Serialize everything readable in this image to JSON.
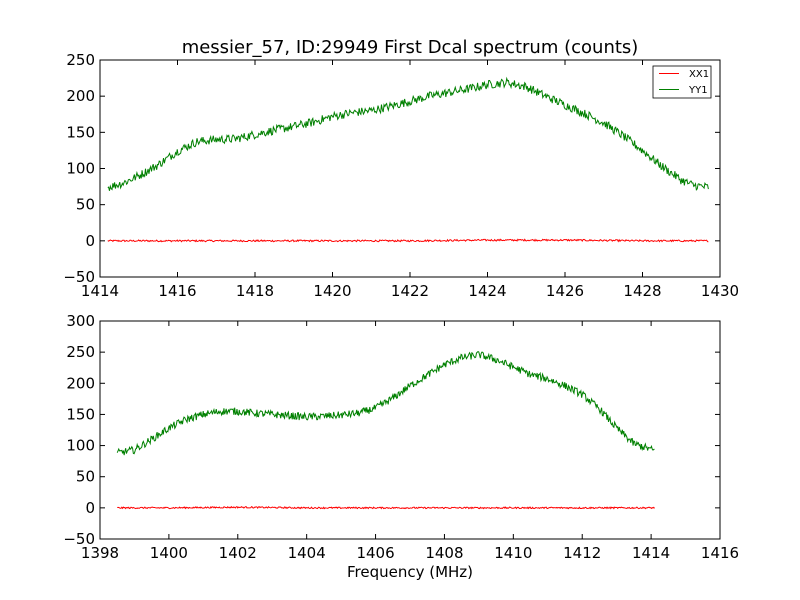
{
  "chart_data": [
    {
      "type": "line",
      "title": "messier_57, ID:29949 First Dcal spectrum (counts)",
      "xlabel": "",
      "ylabel": "",
      "xlim": [
        1414,
        1430
      ],
      "ylim": [
        -50,
        250
      ],
      "xticks": [
        "1414",
        "1416",
        "1418",
        "1420",
        "1422",
        "1424",
        "1426",
        "1428",
        "1430"
      ],
      "yticks": [
        "−50",
        "0",
        "50",
        "100",
        "150",
        "200",
        "250"
      ],
      "legend": {
        "placement": "top-right",
        "entries": [
          "XX1",
          "YY1"
        ]
      },
      "grid": false,
      "series": [
        {
          "name": "XX1",
          "color": "#ff0000",
          "x": [
            1414.2,
            1416,
            1418,
            1420,
            1422,
            1424,
            1426,
            1428,
            1429.7
          ],
          "y": [
            0,
            0,
            0,
            0,
            0,
            1,
            1,
            0,
            0
          ]
        },
        {
          "name": "YY1",
          "color": "#008000",
          "x": [
            1414.2,
            1414.6,
            1415,
            1415.5,
            1416,
            1416.5,
            1417,
            1417.5,
            1418,
            1418.5,
            1419,
            1419.5,
            1420,
            1420.5,
            1421,
            1421.5,
            1422,
            1422.5,
            1423,
            1423.5,
            1424,
            1424.5,
            1425,
            1425.5,
            1426,
            1426.5,
            1427,
            1427.5,
            1428,
            1428.5,
            1429,
            1429.3,
            1429.7
          ],
          "y": [
            74,
            80,
            90,
            105,
            124,
            137,
            140,
            141,
            147,
            153,
            158,
            164,
            172,
            177,
            180,
            186,
            193,
            200,
            205,
            210,
            216,
            219,
            213,
            200,
            188,
            176,
            163,
            145,
            125,
            103,
            84,
            77,
            74
          ]
        }
      ]
    },
    {
      "type": "line",
      "title": "",
      "xlabel": "Frequency (MHz)",
      "ylabel": "",
      "xlim": [
        1398,
        1416
      ],
      "ylim": [
        -50,
        300
      ],
      "xticks": [
        "1398",
        "1400",
        "1402",
        "1404",
        "1406",
        "1408",
        "1410",
        "1412",
        "1414",
        "1416"
      ],
      "yticks": [
        "−50",
        "0",
        "50",
        "100",
        "150",
        "200",
        "250",
        "300"
      ],
      "grid": false,
      "series": [
        {
          "name": "XX1",
          "color": "#ff0000",
          "x": [
            1398.5,
            1400,
            1402,
            1404,
            1406,
            1408,
            1410,
            1412,
            1414.1
          ],
          "y": [
            0,
            0,
            1,
            0,
            0,
            0,
            0,
            0,
            0
          ]
        },
        {
          "name": "YY1",
          "color": "#008000",
          "x": [
            1398.5,
            1399,
            1399.5,
            1400,
            1400.5,
            1401,
            1401.5,
            1402,
            1402.5,
            1403,
            1403.5,
            1404,
            1404.5,
            1405,
            1405.5,
            1406,
            1406.5,
            1407,
            1407.5,
            1408,
            1408.5,
            1409,
            1409.5,
            1410,
            1410.5,
            1411,
            1411.5,
            1412,
            1412.5,
            1413,
            1413.5,
            1414.1
          ],
          "y": [
            88,
            93,
            110,
            128,
            142,
            150,
            155,
            155,
            152,
            150,
            148,
            146,
            147,
            149,
            152,
            160,
            176,
            196,
            213,
            230,
            241,
            246,
            238,
            226,
            214,
            207,
            196,
            182,
            159,
            128,
            103,
            92
          ]
        }
      ]
    }
  ]
}
